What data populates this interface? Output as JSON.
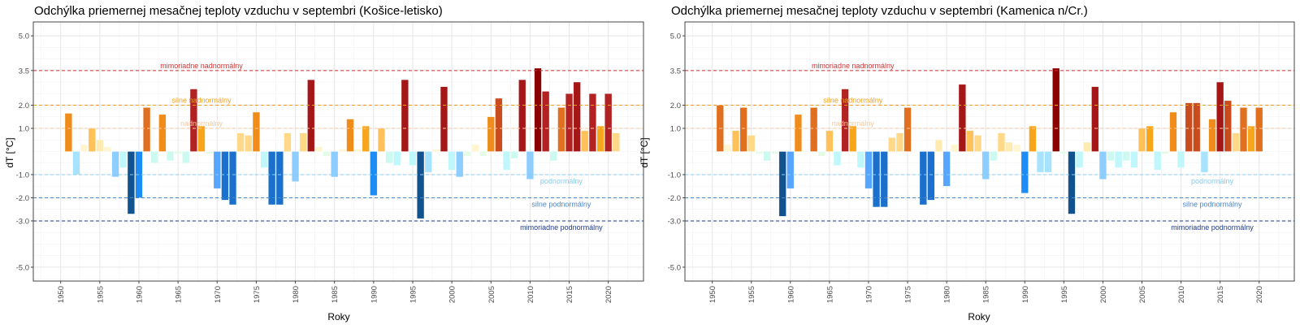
{
  "chart_data": [
    {
      "type": "bar",
      "title": "Odchýlka priemernej mesačnej teploty vzduchu v septembri (Košice-letisko)",
      "xlabel": "Roky",
      "ylabel": "dT [°C]",
      "ylim": [
        -5.6,
        5.6
      ],
      "xlim": [
        1946.5,
        2024.5
      ],
      "yticks": [
        5.0,
        3.5,
        2.0,
        1.0,
        -1.0,
        -2.0,
        -3.0,
        -5.0
      ],
      "ytick_labels": [
        "5.0",
        "3.5",
        "2.0",
        "1.0",
        "-1.0",
        "-2.0",
        "-3.0",
        "-5.0"
      ],
      "xticks": [
        1950,
        1955,
        1960,
        1965,
        1970,
        1975,
        1980,
        1985,
        1990,
        1995,
        2000,
        2005,
        2010,
        2015,
        2020
      ],
      "grid": true,
      "thresholds": [
        {
          "value": 3.5,
          "label": "mimoriadne nadnormálny",
          "color": "#cc3333",
          "label_year": 1968
        },
        {
          "value": 2.0,
          "label": "silne nadnormálny",
          "color": "#f0a020",
          "label_year": 1968
        },
        {
          "value": 1.0,
          "label": "nadnormálny",
          "color": "#f5c9a0",
          "label_year": 1968
        },
        {
          "value": -1.0,
          "label": "podnormálny",
          "color": "#88ccee",
          "label_year": 2014
        },
        {
          "value": -2.0,
          "label": "silne podnormálny",
          "color": "#4a86c0",
          "label_year": 2014
        },
        {
          "value": -3.0,
          "label": "mimoriadne podnormálny",
          "color": "#1f3a8a",
          "label_year": 2014
        }
      ],
      "x": [
        1951,
        1952,
        1953,
        1954,
        1955,
        1956,
        1957,
        1958,
        1959,
        1960,
        1961,
        1962,
        1963,
        1964,
        1965,
        1966,
        1967,
        1968,
        1969,
        1970,
        1971,
        1972,
        1973,
        1974,
        1975,
        1976,
        1977,
        1978,
        1979,
        1980,
        1981,
        1982,
        1983,
        1984,
        1985,
        1986,
        1987,
        1988,
        1989,
        1990,
        1991,
        1992,
        1993,
        1994,
        1995,
        1996,
        1997,
        1998,
        1999,
        2000,
        2001,
        2002,
        2003,
        2004,
        2005,
        2006,
        2007,
        2008,
        2009,
        2010,
        2011,
        2012,
        2013,
        2014,
        2015,
        2016,
        2017,
        2018,
        2019,
        2020,
        2021
      ],
      "values": [
        1.65,
        -1.0,
        0.3,
        1.0,
        0.5,
        0.2,
        -1.1,
        -0.7,
        -2.7,
        -2.0,
        1.9,
        -0.5,
        1.6,
        -0.4,
        -0.1,
        -0.5,
        2.7,
        1.1,
        -0.1,
        -1.6,
        -2.1,
        -2.3,
        0.8,
        0.7,
        1.7,
        -0.7,
        -2.3,
        -2.3,
        0.8,
        -1.3,
        0.8,
        3.1,
        0.2,
        -0.2,
        -1.1,
        0.1,
        1.4,
        0.1,
        1.1,
        -1.9,
        1.0,
        -0.5,
        -0.6,
        3.1,
        -0.6,
        -2.9,
        -0.9,
        0.1,
        2.8,
        -0.8,
        -1.1,
        -0.2,
        0.3,
        -0.2,
        1.5,
        2.3,
        -0.8,
        -0.3,
        3.1,
        -1.2,
        3.6,
        2.6,
        -0.4,
        1.9,
        2.5,
        3.0,
        0.9,
        2.5,
        1.1,
        2.5,
        0.8
      ]
    },
    {
      "type": "bar",
      "title": "Odchýlka priemernej mesačnej teploty vzduchu v septembri (Kamenica n/Cr.)",
      "xlabel": "Roky",
      "ylabel": "dT [°C]",
      "ylim": [
        -5.6,
        5.6
      ],
      "xlim": [
        1946.5,
        2024.5
      ],
      "yticks": [
        5.0,
        3.5,
        2.0,
        1.0,
        -1.0,
        -2.0,
        -3.0,
        -5.0
      ],
      "ytick_labels": [
        "5.0",
        "3.5",
        "2.0",
        "1.0",
        "-1.0",
        "-2.0",
        "-3.0",
        "-5.0"
      ],
      "xticks": [
        1950,
        1955,
        1960,
        1965,
        1970,
        1975,
        1980,
        1985,
        1990,
        1995,
        2000,
        2005,
        2010,
        2015,
        2020
      ],
      "grid": true,
      "thresholds": [
        {
          "value": 3.5,
          "label": "mimoriadne nadnormálny",
          "color": "#cc3333",
          "label_year": 1968
        },
        {
          "value": 2.0,
          "label": "silne nadnormálny",
          "color": "#f0a020",
          "label_year": 1968
        },
        {
          "value": 1.0,
          "label": "nadnormálny",
          "color": "#f5c9a0",
          "label_year": 1968
        },
        {
          "value": -1.0,
          "label": "podnormálny",
          "color": "#88ccee",
          "label_year": 2014
        },
        {
          "value": -2.0,
          "label": "silne podnormálny",
          "color": "#4a86c0",
          "label_year": 2014
        },
        {
          "value": -3.0,
          "label": "mimoriadne podnormálny",
          "color": "#1f3a8a",
          "label_year": 2014
        }
      ],
      "x": [
        1951,
        1952,
        1953,
        1954,
        1955,
        1956,
        1957,
        1958,
        1959,
        1960,
        1961,
        1962,
        1963,
        1964,
        1965,
        1966,
        1967,
        1968,
        1969,
        1970,
        1971,
        1972,
        1973,
        1974,
        1975,
        1976,
        1977,
        1978,
        1979,
        1980,
        1981,
        1982,
        1983,
        1984,
        1985,
        1986,
        1987,
        1988,
        1989,
        1990,
        1991,
        1992,
        1993,
        1994,
        1995,
        1996,
        1997,
        1998,
        1999,
        2000,
        2001,
        2002,
        2003,
        2004,
        2005,
        2006,
        2007,
        2008,
        2009,
        2010,
        2011,
        2012,
        2013,
        2014,
        2015,
        2016,
        2017,
        2018,
        2019,
        2020
      ],
      "values": [
        2.0,
        0.3,
        0.9,
        1.9,
        0.7,
        -0.1,
        -0.4,
        -0.1,
        -2.8,
        -1.6,
        1.6,
        0.0,
        1.9,
        -0.2,
        0.9,
        -0.6,
        2.7,
        1.1,
        -0.7,
        -1.6,
        -2.4,
        -2.4,
        0.6,
        0.8,
        1.9,
        0.0,
        -2.3,
        -2.1,
        0.5,
        -1.5,
        0.3,
        2.9,
        0.9,
        0.7,
        -1.2,
        -0.4,
        0.8,
        0.4,
        0.3,
        -1.8,
        1.1,
        -0.9,
        -0.9,
        3.6,
        -0.1,
        -2.7,
        -0.7,
        0.4,
        2.8,
        -1.2,
        -0.4,
        -0.7,
        -0.4,
        -0.7,
        1.0,
        1.1,
        -0.8,
        -0.1,
        1.7,
        -0.7,
        2.1,
        2.1,
        -0.9,
        1.4,
        3.0,
        2.2,
        0.8,
        1.9,
        1.1,
        1.9
      ]
    }
  ]
}
